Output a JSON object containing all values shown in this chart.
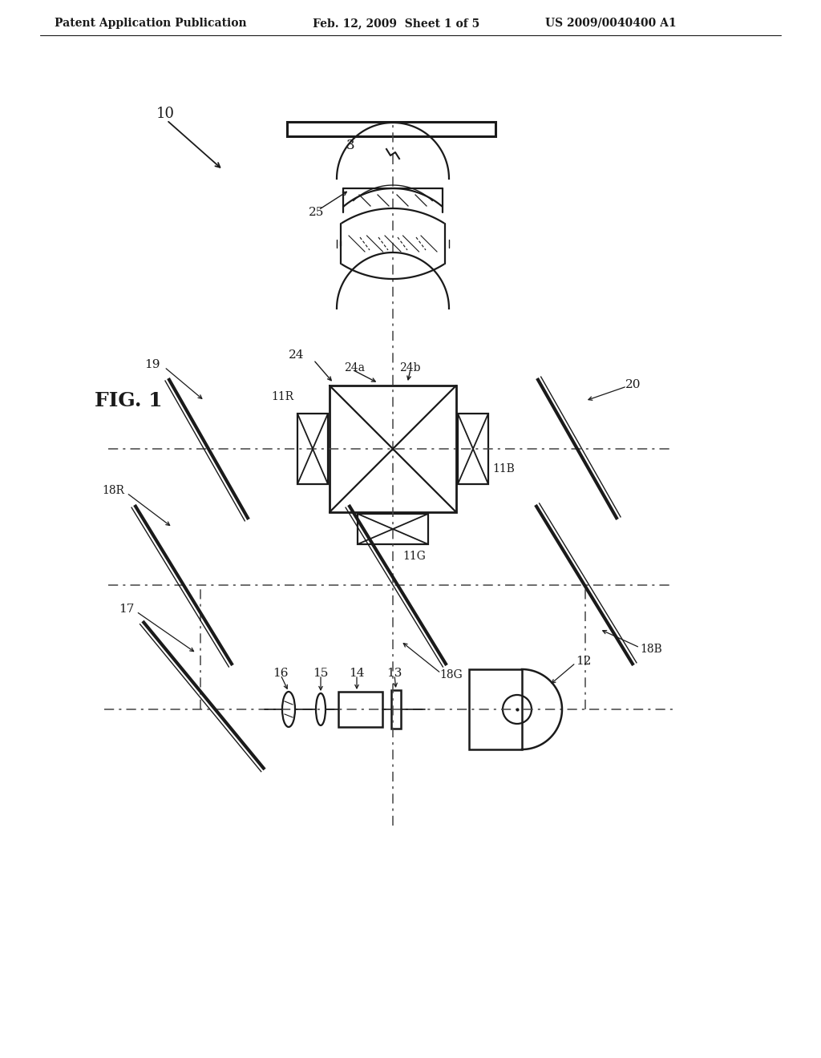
{
  "background_color": "#ffffff",
  "header_left": "Patent Application Publication",
  "header_mid": "Feb. 12, 2009  Sheet 1 of 5",
  "header_right": "US 2009/0040400 A1",
  "line_color": "#1a1a1a",
  "dash_color": "#444444"
}
